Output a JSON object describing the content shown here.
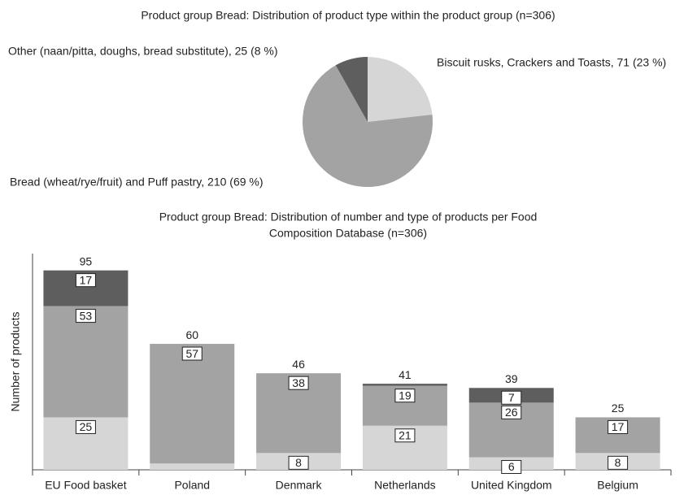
{
  "chart_data": [
    {
      "type": "pie",
      "title": "Product group Bread: Distribution of product type within the product group (n=306)",
      "labels": [
        "Biscuit rusks, Crackers and Toasts, 71 (23 %)",
        "Bread (wheat/rye/fruit) and Puff pastry, 210 (69 %)",
        "Other (naan/pitta, doughs, bread substitute), 25 (8 %)"
      ],
      "values": [
        71,
        210,
        25
      ],
      "colors": [
        "#d6d6d6",
        "#a3a3a3",
        "#5e5e5e"
      ]
    },
    {
      "type": "stacked_bar",
      "title": [
        "Product group Bread: Distribution of number and type of products per Food",
        "Composition Database (n=306)"
      ],
      "ylabel": "Number of products",
      "categories": [
        "EU Food basket",
        "Poland",
        "Denmark",
        "Netherlands",
        "United Kingdom",
        "Belgium"
      ],
      "totals": [
        95,
        60,
        46,
        41,
        39,
        25
      ],
      "series": [
        {
          "color": "#d6d6d6",
          "values": [
            25,
            3,
            8,
            21,
            6,
            8
          ],
          "value_labels": [
            "25",
            null,
            "8",
            "21",
            "6",
            "8"
          ]
        },
        {
          "color": "#a3a3a3",
          "values": [
            53,
            57,
            38,
            19,
            26,
            17
          ],
          "value_labels": [
            "53",
            "57",
            "38",
            "19",
            "26",
            "17"
          ]
        },
        {
          "color": "#5e5e5e",
          "values": [
            17,
            0,
            0,
            1,
            7,
            0
          ],
          "value_labels": [
            "17",
            null,
            null,
            null,
            "7",
            null
          ]
        }
      ],
      "ylim": [
        0,
        103
      ]
    }
  ]
}
